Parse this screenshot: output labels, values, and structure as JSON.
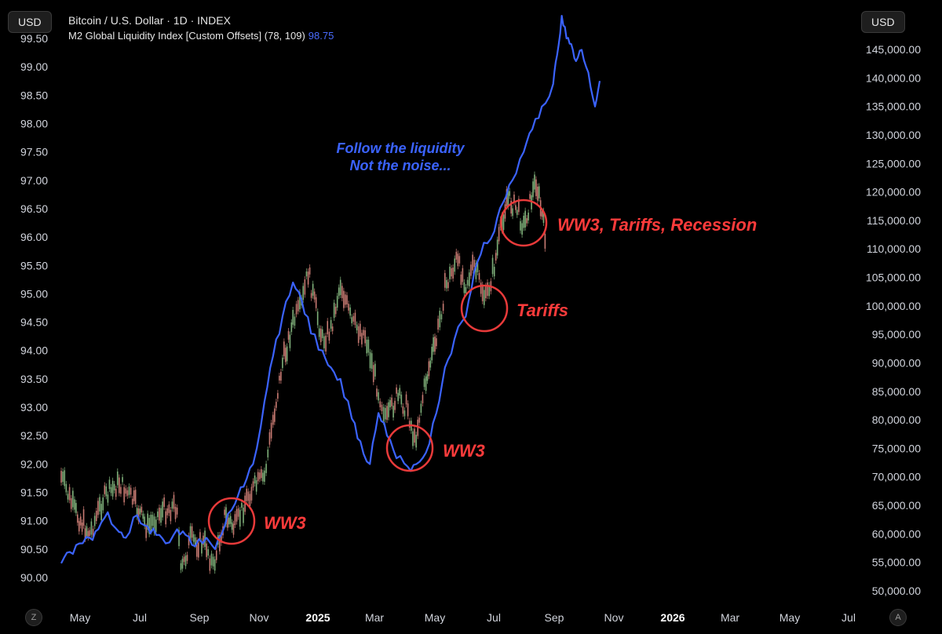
{
  "header": {
    "left_currency": "USD",
    "right_currency": "USD",
    "title": "Bitcoin / U.S. Dollar · 1D · INDEX",
    "indicator": "M2 Global Liquidity Index [Custom Offsets] (78, 109)",
    "indicator_value": "98.75"
  },
  "buttons": {
    "left_circle": "Z",
    "right_circle": "A"
  },
  "annotations": {
    "blue_line1": "Follow the liquidity",
    "blue_line2": "Not the noise...",
    "red_ww3_a": "WW3",
    "red_ww3_b": "WW3",
    "red_tariffs": "Tariffs",
    "red_combo": "WW3, Tariffs, Recession"
  },
  "chart_data": {
    "type": "line",
    "x_ticks": [
      "May",
      "Jul",
      "Sep",
      "Nov",
      "2025",
      "Mar",
      "May",
      "Jul",
      "Sep",
      "Nov",
      "2026",
      "Mar",
      "May",
      "Jul"
    ],
    "x_ticks_bold": [
      "2025",
      "2026"
    ],
    "left_axis": {
      "ticks": [
        "90.00",
        "90.50",
        "91.00",
        "91.50",
        "92.00",
        "92.50",
        "93.00",
        "93.50",
        "94.00",
        "94.50",
        "95.00",
        "95.50",
        "96.00",
        "96.50",
        "97.00",
        "97.50",
        "98.00",
        "98.50",
        "99.00",
        "99.50"
      ],
      "range": [
        89.8,
        99.6
      ]
    },
    "right_axis": {
      "ticks": [
        "50,000.00",
        "55,000.00",
        "60,000.00",
        "65,000.00",
        "70,000.00",
        "75,000.00",
        "80,000.00",
        "85,000.00",
        "90,000.00",
        "95,000.00",
        "100,000.00",
        "105,000.00",
        "110,000.00",
        "115,000.00",
        "120,000.00",
        "125,000.00",
        "130,000.00",
        "135,000.00",
        "140,000.00",
        "145,000.00"
      ],
      "range": [
        48000,
        148000
      ]
    },
    "series": [
      {
        "name": "M2 Global Liquidity Index [Custom Offsets] (78, 109)",
        "axis": "left",
        "color": "#3b63ff",
        "x": [
          "2024-04-01",
          "2024-04-10",
          "2024-04-20",
          "2024-05-01",
          "2024-05-10",
          "2024-05-20",
          "2024-06-01",
          "2024-06-08",
          "2024-06-20",
          "2024-07-01",
          "2024-07-10",
          "2024-07-20",
          "2024-08-01",
          "2024-08-10",
          "2024-08-20",
          "2024-09-01",
          "2024-09-10",
          "2024-09-20",
          "2024-10-01",
          "2024-10-10",
          "2024-10-20",
          "2024-11-01",
          "2024-11-10",
          "2024-11-20",
          "2024-12-01",
          "2024-12-10",
          "2024-12-20",
          "2025-01-01",
          "2025-01-10",
          "2025-01-20",
          "2025-02-01",
          "2025-02-10",
          "2025-02-20",
          "2025-03-01",
          "2025-03-10",
          "2025-03-20",
          "2025-04-01",
          "2025-04-10",
          "2025-04-20",
          "2025-05-01",
          "2025-05-10",
          "2025-05-20",
          "2025-06-01",
          "2025-06-10",
          "2025-06-20",
          "2025-07-01",
          "2025-07-10",
          "2025-07-20",
          "2025-08-01",
          "2025-08-10",
          "2025-08-20",
          "2025-09-01",
          "2025-09-05",
          "2025-09-10",
          "2025-09-15",
          "2025-09-20",
          "2025-09-25",
          "2025-10-01",
          "2025-10-08",
          "2025-10-15",
          "2025-10-20"
        ],
        "values": [
          90.25,
          90.45,
          90.6,
          90.7,
          90.85,
          91.15,
          90.8,
          90.7,
          91.1,
          90.9,
          90.75,
          90.6,
          90.85,
          90.75,
          90.55,
          90.7,
          90.5,
          90.9,
          91.3,
          91.6,
          92.0,
          93.1,
          93.9,
          94.6,
          95.2,
          94.9,
          94.3,
          94.0,
          93.7,
          93.5,
          92.8,
          92.4,
          92.0,
          92.9,
          92.5,
          92.1,
          91.95,
          92.0,
          92.2,
          92.9,
          93.7,
          94.2,
          94.6,
          95.4,
          95.9,
          96.1,
          96.6,
          97.0,
          97.5,
          97.9,
          98.3,
          98.7,
          99.2,
          99.9,
          99.5,
          99.4,
          99.1,
          99.3,
          98.9,
          98.3,
          98.75
        ]
      },
      {
        "name": "Bitcoin / U.S. Dollar · 1D · INDEX",
        "axis": "right",
        "color": "#c9c9c9",
        "x": [
          "2024-04-01",
          "2024-04-15",
          "2024-05-01",
          "2024-05-15",
          "2024-06-01",
          "2024-06-15",
          "2024-07-01",
          "2024-07-15",
          "2024-08-01",
          "2024-08-05",
          "2024-08-15",
          "2024-09-01",
          "2024-09-08",
          "2024-09-20",
          "2024-10-01",
          "2024-10-15",
          "2024-11-01",
          "2024-11-10",
          "2024-11-20",
          "2024-12-01",
          "2024-12-10",
          "2024-12-17",
          "2025-01-01",
          "2025-01-10",
          "2025-01-20",
          "2025-02-01",
          "2025-02-15",
          "2025-03-01",
          "2025-03-10",
          "2025-03-20",
          "2025-04-01",
          "2025-04-08",
          "2025-04-20",
          "2025-05-01",
          "2025-05-10",
          "2025-05-22",
          "2025-06-01",
          "2025-06-10",
          "2025-06-22",
          "2025-07-01",
          "2025-07-14",
          "2025-07-25",
          "2025-08-01",
          "2025-08-14",
          "2025-08-25"
        ],
        "values": [
          70000,
          64000,
          60000,
          66000,
          69000,
          66000,
          61000,
          64000,
          65000,
          53000,
          59000,
          58000,
          54000,
          63000,
          61000,
          67000,
          70000,
          80000,
          90000,
          97000,
          100000,
          106000,
          94000,
          96000,
          104000,
          97000,
          95000,
          85000,
          80000,
          84000,
          82000,
          76000,
          87000,
          94000,
          103000,
          108000,
          104000,
          107000,
          101000,
          107000,
          119000,
          117000,
          114000,
          122000,
          111000
        ]
      }
    ],
    "title": "Bitcoin / U.S. Dollar · 1D · INDEX",
    "grid": false,
    "legend_position": "top-left"
  }
}
